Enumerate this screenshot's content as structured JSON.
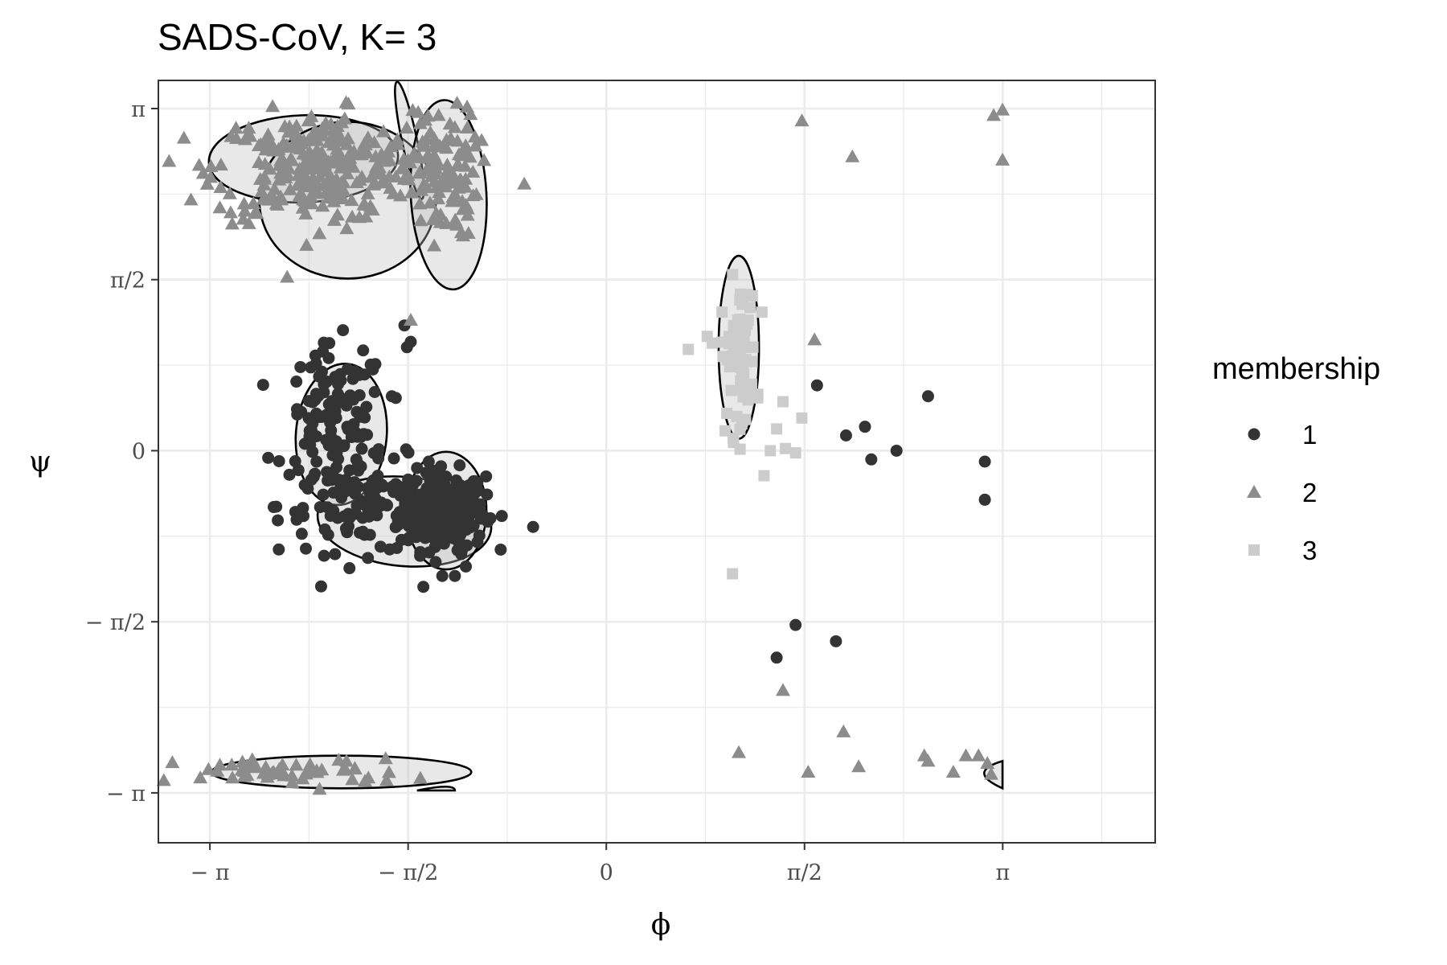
{
  "chart_data": {
    "type": "scatter",
    "title": "SADS-CoV, K= 3",
    "xlabel": "ϕ",
    "ylabel": "ψ",
    "xlim": [
      -3.55,
      4.35
    ],
    "ylim": [
      -3.6,
      3.4
    ],
    "x_ticks": [
      {
        "value": -3.14159,
        "label": "− π"
      },
      {
        "value": -1.5708,
        "label": "− π/2"
      },
      {
        "value": 0,
        "label": "0"
      },
      {
        "value": 1.5708,
        "label": "π/2"
      },
      {
        "value": 3.14159,
        "label": "π"
      }
    ],
    "y_ticks": [
      {
        "value": -3.14159,
        "label": "− π"
      },
      {
        "value": -1.5708,
        "label": "− π/2"
      },
      {
        "value": 0,
        "label": "0"
      },
      {
        "value": 1.5708,
        "label": "π/2"
      },
      {
        "value": 3.14159,
        "label": "π"
      }
    ],
    "grid": true,
    "legend": {
      "title": "membership",
      "position": "right",
      "entries": [
        {
          "label": "1",
          "shape": "circle",
          "color": "#333333"
        },
        {
          "label": "2",
          "shape": "triangle",
          "color": "#8c8c8c"
        },
        {
          "label": "3",
          "shape": "square",
          "color": "#cccccc"
        }
      ]
    },
    "series": [
      {
        "name": "1",
        "shape": "circle",
        "color": "#333333",
        "clusters": [
          {
            "cx": -1.3,
            "cy": -0.55,
            "sx": 0.17,
            "sy": 0.18,
            "n": 260
          },
          {
            "cx": -1.9,
            "cy": -0.5,
            "sx": 0.35,
            "sy": 0.22,
            "n": 110
          },
          {
            "cx": -2.15,
            "cy": 0.25,
            "sx": 0.2,
            "sy": 0.35,
            "n": 110
          }
        ],
        "points": [
          [
            -1.6,
            1.15
          ],
          [
            -1.55,
            1.0
          ],
          [
            -1.58,
            0.95
          ],
          [
            -2.3,
            0.8
          ],
          [
            -2.2,
            0.85
          ],
          [
            -2.05,
            0.75
          ],
          [
            -1.7,
            0.5
          ],
          [
            -1.2,
            -0.5
          ],
          [
            -1.15,
            -0.95
          ],
          [
            -0.58,
            -0.7
          ],
          [
            -1.45,
            -1.25
          ],
          [
            -1.3,
            -1.15
          ],
          [
            -1.2,
            -1.15
          ],
          [
            -2.15,
            -0.95
          ],
          [
            -2.4,
            -0.6
          ],
          [
            1.67,
            0.6
          ],
          [
            2.05,
            0.22
          ],
          [
            1.9,
            0.14
          ],
          [
            2.55,
            0.5
          ],
          [
            2.1,
            -0.08
          ],
          [
            2.3,
            0.0
          ],
          [
            3.0,
            -0.45
          ],
          [
            3.0,
            -0.1
          ],
          [
            1.5,
            -1.6
          ],
          [
            1.35,
            -1.9
          ],
          [
            1.82,
            -1.75
          ]
        ]
      },
      {
        "name": "2",
        "shape": "triangle",
        "color": "#8c8c8c",
        "clusters": [
          {
            "cx": -2.3,
            "cy": 2.6,
            "sx": 0.4,
            "sy": 0.25,
            "n": 280
          },
          {
            "cx": -1.3,
            "cy": 2.55,
            "sx": 0.14,
            "sy": 0.3,
            "n": 110
          },
          {
            "cx": -2.5,
            "cy": -2.95,
            "sx": 0.45,
            "sy": 0.06,
            "n": 55
          }
        ],
        "points": [
          [
            -0.65,
            2.45
          ],
          [
            -1.55,
            1.2
          ],
          [
            1.55,
            3.03
          ],
          [
            1.95,
            2.7
          ],
          [
            3.07,
            3.08
          ],
          [
            3.14,
            3.13
          ],
          [
            3.14,
            2.67
          ],
          [
            1.65,
            1.02
          ],
          [
            1.4,
            -2.2
          ],
          [
            1.6,
            -2.95
          ],
          [
            1.05,
            -2.77
          ],
          [
            1.88,
            -2.58
          ],
          [
            2.0,
            -2.9
          ],
          [
            2.52,
            -2.8
          ],
          [
            2.55,
            -2.85
          ],
          [
            2.75,
            -2.95
          ],
          [
            2.85,
            -2.8
          ],
          [
            2.95,
            -2.8
          ],
          [
            3.02,
            -2.87
          ],
          [
            3.05,
            -2.97
          ]
        ]
      },
      {
        "name": "3",
        "shape": "square",
        "color": "#cccccc",
        "clusters": [
          {
            "cx": 1.05,
            "cy": 0.85,
            "sx": 0.07,
            "sy": 0.35,
            "n": 70
          }
        ],
        "points": [
          [
            0.8,
            1.05
          ],
          [
            0.65,
            0.93
          ],
          [
            1.4,
            0.45
          ],
          [
            1.55,
            0.3
          ],
          [
            1.35,
            0.2
          ],
          [
            1.42,
            0.02
          ],
          [
            1.5,
            -0.02
          ],
          [
            1.3,
            0.0
          ],
          [
            1.25,
            -0.23
          ],
          [
            1.0,
            -1.13
          ]
        ]
      }
    ],
    "ellipses": [
      {
        "cx": -2.4,
        "cy": 2.68,
        "rx": 0.75,
        "ry": 0.4,
        "angle": -2
      },
      {
        "cx": -2.05,
        "cy": 2.3,
        "rx": 0.7,
        "ry": 0.72,
        "angle": 0
      },
      {
        "cx": -1.56,
        "cy": 2.85,
        "rx": 0.06,
        "ry": 0.55,
        "angle": -12
      },
      {
        "cx": -1.25,
        "cy": 2.35,
        "rx": 0.3,
        "ry": 0.87,
        "angle": -3
      },
      {
        "cx": -2.1,
        "cy": 0.15,
        "rx": 0.36,
        "ry": 0.65,
        "angle": 5
      },
      {
        "cx": -1.6,
        "cy": -0.65,
        "rx": 0.69,
        "ry": 0.41,
        "angle": 5
      },
      {
        "cx": -1.27,
        "cy": -0.55,
        "rx": 0.32,
        "ry": 0.54,
        "angle": 0
      },
      {
        "cx": 1.05,
        "cy": 0.95,
        "rx": 0.16,
        "ry": 0.84,
        "angle": 0
      },
      {
        "cx": -2.1,
        "cy": -2.95,
        "rx": 1.03,
        "ry": 0.15,
        "angle": 0
      }
    ],
    "arcs": [
      {
        "points": [
          [
            -1.5,
            -3.12
          ],
          [
            -1.2,
            -3.05
          ],
          [
            -1.2,
            -3.12
          ]
        ]
      },
      {
        "points": [
          [
            3.14,
            -2.85
          ],
          [
            2.85,
            -2.95
          ],
          [
            3.14,
            -3.1
          ]
        ]
      }
    ]
  }
}
